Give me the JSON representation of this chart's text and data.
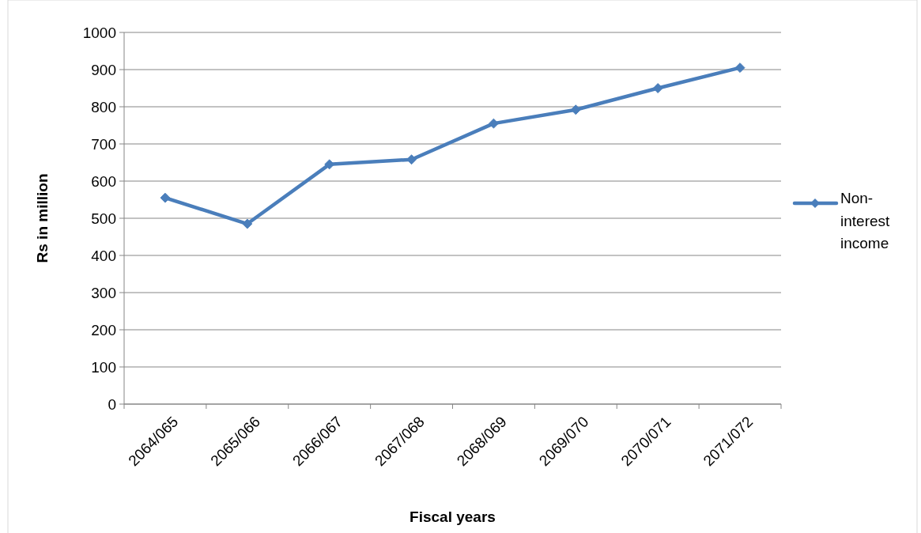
{
  "chart_data": {
    "type": "line",
    "xlabel": "Fiscal years",
    "ylabel": "Rs in million",
    "categories": [
      "2064/065",
      "2065/066",
      "2066/067",
      "2067/068",
      "2068/069",
      "2069/070",
      "2070/071",
      "2071/072"
    ],
    "series": [
      {
        "name": "Non-interest income",
        "color": "#4a7ebb",
        "values": [
          555,
          485,
          645,
          658,
          755,
          792,
          850,
          905
        ]
      }
    ],
    "ylim": [
      0,
      1000
    ],
    "yticks": [
      0,
      100,
      200,
      300,
      400,
      500,
      600,
      700,
      800,
      900,
      1000
    ],
    "grid": "y",
    "legend": "right",
    "marker": "diamond",
    "line_style": "solid"
  }
}
